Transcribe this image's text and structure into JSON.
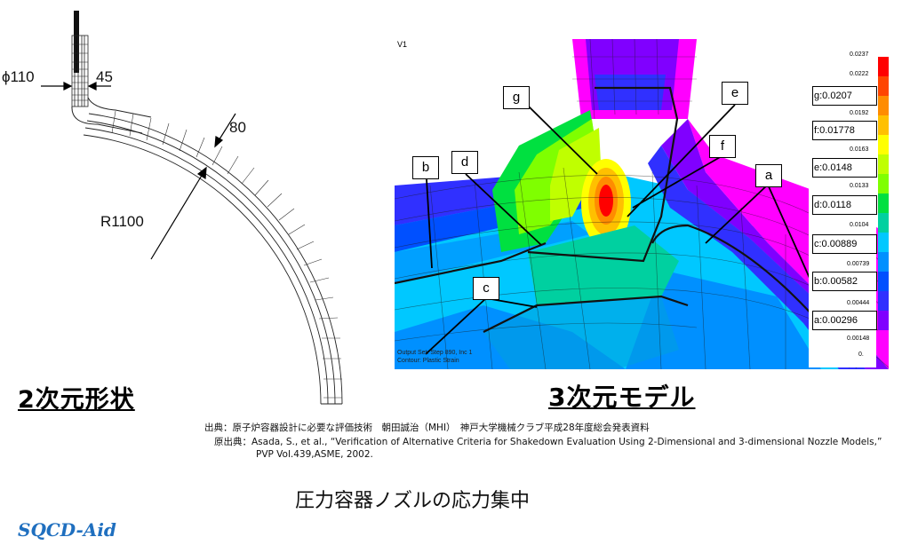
{
  "left_figure": {
    "dim_diameter": "ϕ110",
    "dim_thickness_nozzle": "45",
    "dim_thickness_shell": "80",
    "dim_radius": "R1100",
    "heading": "2次元形状"
  },
  "right_figure": {
    "view_label": "V1",
    "heading": "3次元モデル",
    "footer_line1": "Output Set: Step 890, Inc 1",
    "footer_line2": "Contour: Plastic Strain",
    "callouts": [
      "a",
      "b",
      "c",
      "d",
      "e",
      "f",
      "g"
    ],
    "legend": {
      "scale_ticks": [
        "0.0237",
        "0.0222",
        "0.0192",
        "0.0163",
        "0.0133",
        "0.0104",
        "0.00739",
        "0.00444",
        "0.00148",
        "0."
      ],
      "labels": [
        "g:0.0207",
        "f:0.01778",
        "e:0.0148",
        "d:0.0118",
        "c:0.00889",
        "b:0.00582",
        "a:0.00296"
      ],
      "colors": [
        "#ff0000",
        "#ff4500",
        "#ff8c00",
        "#ffc000",
        "#ffff00",
        "#c0ff00",
        "#7fff00",
        "#00e040",
        "#00d0a0",
        "#00c8ff",
        "#0090ff",
        "#0050ff",
        "#3030ff",
        "#8000ff",
        "#ff00ff"
      ]
    }
  },
  "sources": {
    "line1": "出典：原子炉容器設計に必要な評価技術　朝田誠治（MHI）　神戸大学機械クラブ平成28年度総会発表資料",
    "line2": "原出典：Asada, S., et al., “Verification of Alternative Criteria for Shakedown Evaluation Using 2-Dimensional and 3-dimensional Nozzle Models,”",
    "line3": "PVP Vol.439,ASME, 2002."
  },
  "caption": "圧力容器ノズルの応力集中",
  "brand": "SQCD-Aid"
}
